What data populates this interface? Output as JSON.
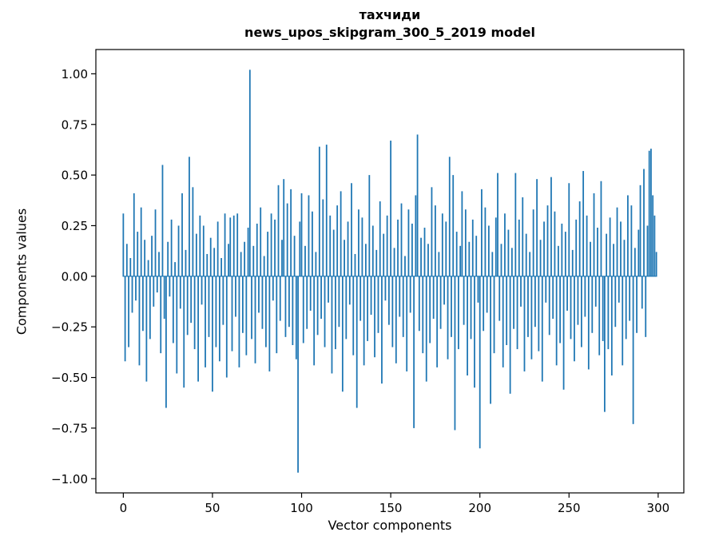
{
  "chart_data": {
    "type": "bar",
    "title": "тахчиди",
    "subtitle": "news_upos_skipgram_300_5_2019 model",
    "xlabel": "Vector components",
    "ylabel": "Components values",
    "bar_color": "#1f77b4",
    "grid": false,
    "legend": "none",
    "xlim": [
      -15.4,
      314.4
    ],
    "ylim": [
      -1.07,
      1.12
    ],
    "x_description": "vector component index 0..299",
    "xticks": [
      {
        "value": 0,
        "label": "0"
      },
      {
        "value": 50,
        "label": "50"
      },
      {
        "value": 100,
        "label": "100"
      },
      {
        "value": 150,
        "label": "150"
      },
      {
        "value": 200,
        "label": "200"
      },
      {
        "value": 250,
        "label": "250"
      },
      {
        "value": 300,
        "label": "300"
      }
    ],
    "yticks": [
      {
        "value": 1.0,
        "label": "1.00"
      },
      {
        "value": 0.75,
        "label": "0.75"
      },
      {
        "value": 0.5,
        "label": "0.50"
      },
      {
        "value": 0.25,
        "label": "0.25"
      },
      {
        "value": 0.0,
        "label": "0.00"
      },
      {
        "value": -0.25,
        "label": "−0.25"
      },
      {
        "value": -0.5,
        "label": "−0.50"
      },
      {
        "value": -0.75,
        "label": "−0.75"
      },
      {
        "value": -1.0,
        "label": "−1.00"
      }
    ],
    "values": [
      0.31,
      -0.42,
      0.16,
      -0.35,
      0.09,
      -0.18,
      0.41,
      -0.12,
      0.22,
      -0.44,
      0.34,
      -0.27,
      0.18,
      -0.52,
      0.08,
      -0.31,
      0.2,
      -0.15,
      0.33,
      -0.08,
      0.12,
      -0.38,
      0.55,
      -0.21,
      -0.65,
      0.17,
      -0.1,
      0.28,
      -0.33,
      0.07,
      -0.48,
      0.25,
      -0.16,
      0.41,
      -0.55,
      0.13,
      -0.29,
      0.59,
      -0.23,
      0.44,
      -0.36,
      0.21,
      -0.52,
      0.3,
      -0.14,
      0.25,
      -0.45,
      0.11,
      -0.3,
      0.19,
      -0.57,
      0.14,
      -0.35,
      0.27,
      -0.42,
      0.09,
      -0.24,
      0.31,
      -0.5,
      0.16,
      0.29,
      -0.37,
      0.3,
      -0.2,
      0.31,
      -0.45,
      0.12,
      -0.28,
      0.17,
      -0.39,
      0.24,
      1.02,
      -0.31,
      0.15,
      -0.43,
      0.26,
      -0.18,
      0.34,
      -0.26,
      0.1,
      -0.35,
      0.22,
      -0.47,
      0.31,
      -0.12,
      0.28,
      -0.38,
      0.45,
      -0.22,
      0.18,
      0.48,
      -0.3,
      0.36,
      -0.25,
      0.43,
      -0.34,
      0.2,
      -0.41,
      -0.97,
      0.27,
      0.41,
      -0.33,
      0.15,
      -0.26,
      0.4,
      -0.17,
      0.32,
      -0.44,
      0.12,
      -0.29,
      0.64,
      -0.21,
      0.38,
      -0.35,
      0.65,
      -0.13,
      0.3,
      -0.48,
      0.23,
      -0.36,
      0.35,
      -0.25,
      0.42,
      -0.57,
      0.18,
      -0.31,
      0.27,
      -0.14,
      0.46,
      -0.39,
      0.11,
      -0.65,
      0.33,
      -0.22,
      0.29,
      -0.44,
      0.16,
      -0.32,
      0.5,
      -0.19,
      0.25,
      -0.4,
      0.13,
      -0.28,
      0.37,
      -0.53,
      0.21,
      -0.12,
      0.3,
      -0.24,
      0.67,
      -0.35,
      0.14,
      -0.43,
      0.28,
      -0.2,
      0.36,
      -0.3,
      0.1,
      -0.47,
      0.33,
      -0.18,
      0.26,
      -0.75,
      0.4,
      0.7,
      -0.27,
      0.19,
      -0.38,
      0.24,
      -0.52,
      0.16,
      -0.33,
      0.44,
      -0.21,
      0.35,
      -0.45,
      0.12,
      -0.26,
      0.31,
      -0.14,
      0.27,
      -0.41,
      0.59,
      -0.3,
      0.5,
      -0.76,
      0.22,
      -0.36,
      0.15,
      0.42,
      -0.24,
      0.33,
      -0.49,
      0.17,
      -0.31,
      0.28,
      -0.55,
      0.2,
      -0.13,
      -0.85,
      0.43,
      -0.27,
      0.34,
      -0.18,
      0.25,
      -0.63,
      0.12,
      -0.38,
      0.29,
      0.51,
      -0.22,
      0.16,
      -0.45,
      0.31,
      -0.34,
      0.23,
      -0.58,
      0.14,
      -0.26,
      0.51,
      -0.36,
      0.28,
      -0.15,
      0.39,
      -0.47,
      0.21,
      -0.3,
      0.12,
      -0.41,
      0.33,
      -0.25,
      0.48,
      -0.37,
      0.18,
      -0.52,
      0.27,
      -0.13,
      0.35,
      -0.29,
      0.49,
      -0.21,
      0.32,
      -0.44,
      0.15,
      -0.33,
      0.26,
      -0.56,
      0.22,
      -0.17,
      0.46,
      -0.31,
      0.13,
      -0.42,
      0.28,
      -0.24,
      0.37,
      -0.35,
      0.52,
      -0.2,
      0.3,
      -0.46,
      0.17,
      -0.28,
      0.41,
      -0.15,
      0.24,
      -0.39,
      0.47,
      -0.32,
      -0.67,
      0.21,
      -0.36,
      0.29,
      -0.49,
      0.16,
      -0.25,
      0.34,
      -0.13,
      0.27,
      -0.44,
      0.18,
      -0.31,
      0.4,
      -0.22,
      0.35,
      -0.73,
      0.14,
      -0.28,
      0.23,
      0.45,
      -0.16,
      0.53,
      -0.3,
      0.25,
      0.62,
      0.63,
      0.4,
      0.3,
      0.12
    ]
  }
}
